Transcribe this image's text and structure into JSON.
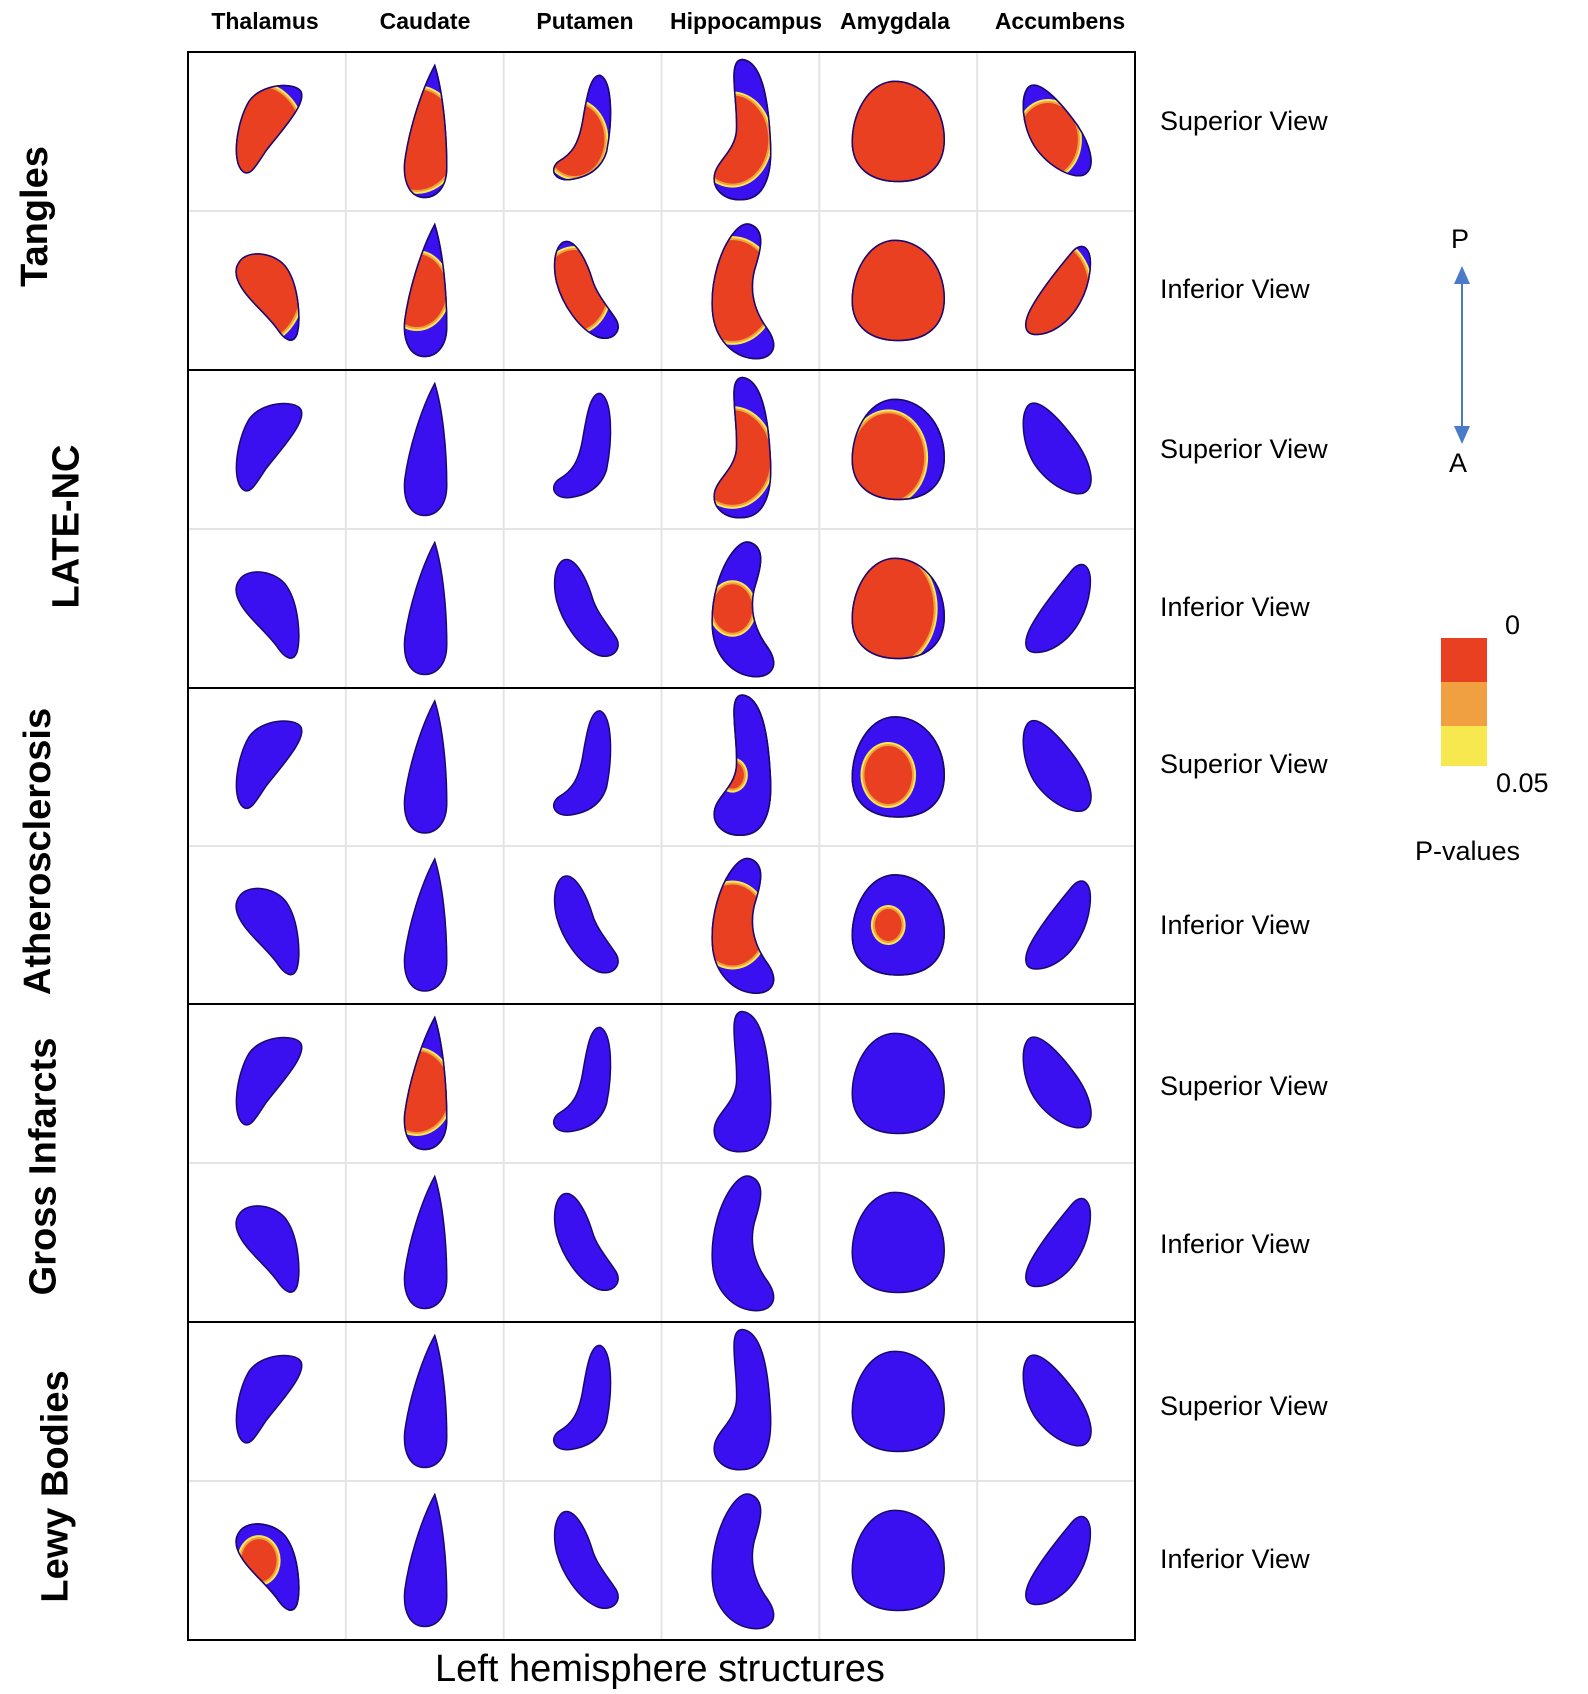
{
  "columns": [
    "Thalamus",
    "Caudate",
    "Putamen",
    "Hippocampus",
    "Amygdala",
    "Accumbens"
  ],
  "rows": [
    {
      "label": "Tangles",
      "views": [
        "Superior View",
        "Inferior View"
      ]
    },
    {
      "label": "LATE-NC",
      "views": [
        "Superior View",
        "Inferior View"
      ]
    },
    {
      "label": "Atherosclerosis",
      "views": [
        "Superior View",
        "Inferior View"
      ]
    },
    {
      "label": "Gross Infarcts",
      "views": [
        "Superior View",
        "Inferior View"
      ]
    },
    {
      "label": "Lewy Bodies",
      "views": [
        "Superior View",
        "Inferior View"
      ]
    }
  ],
  "x_title": "Left hemisphere structures",
  "orientation": {
    "top": "P",
    "bottom": "A"
  },
  "legend": {
    "title": "P-values",
    "max_label": "0",
    "min_label": "0.05"
  },
  "colors": {
    "base": "#3a10f0",
    "sig_high": "#e84020",
    "sig_mid": "#f0a040",
    "sig_low": "#f8e850",
    "arrow": "#4a7ac8",
    "grid": "#e4e4e4"
  },
  "significance": [
    [
      [
        0.45,
        0.4,
        0.2,
        0.3,
        0.8,
        0.2
      ],
      [
        0.4,
        0.2,
        0.25,
        0.4,
        0.9,
        0.4
      ]
    ],
    [
      [
        0,
        0,
        0,
        0.35,
        0.3,
        0
      ],
      [
        0,
        0,
        0,
        0.08,
        0.5,
        0
      ]
    ],
    [
      [
        0,
        0,
        0,
        0.02,
        0.12,
        0
      ],
      [
        0,
        0,
        0,
        0.25,
        0.03,
        0
      ]
    ],
    [
      [
        0,
        0.25,
        0,
        0,
        0,
        0
      ],
      [
        0,
        0,
        0,
        0,
        0,
        0
      ]
    ],
    [
      [
        0,
        0,
        0,
        0,
        0,
        0
      ],
      [
        0.06,
        0,
        0,
        0,
        0,
        0
      ]
    ]
  ]
}
